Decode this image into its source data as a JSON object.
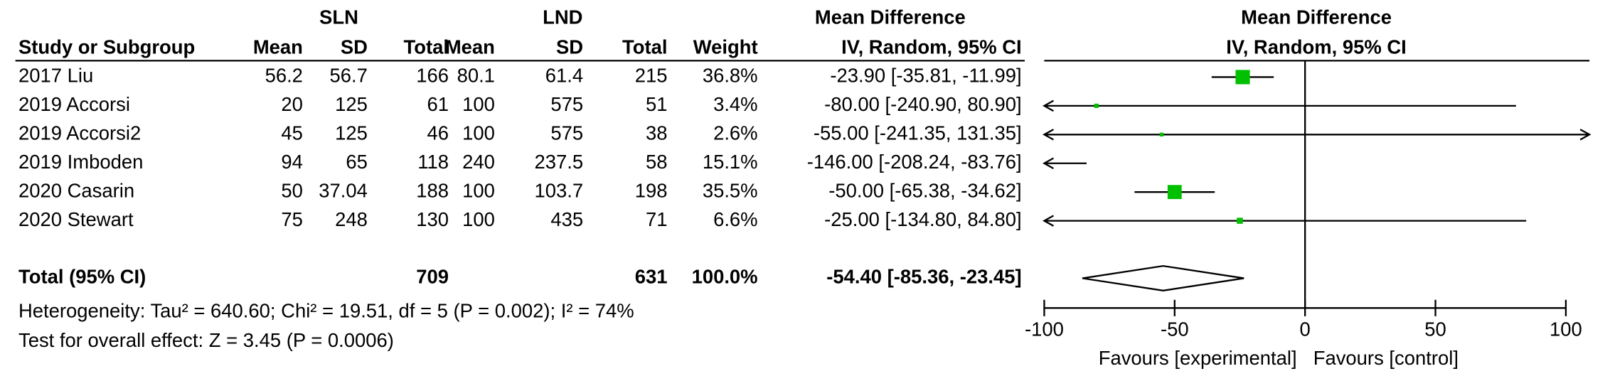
{
  "chart_data": {
    "type": "forest",
    "group_labels": [
      "SLN",
      "LND"
    ],
    "column_headers": [
      "Study or Subgroup",
      "Mean",
      "SD",
      "Total",
      "Mean",
      "SD",
      "Total",
      "Weight",
      "IV, Random, 95% CI"
    ],
    "effect_header": "Mean Difference",
    "plot_header": "Mean Difference",
    "plot_subheader": "IV, Random, 95% CI",
    "studies": [
      {
        "name": "2017 Liu",
        "sln_mean": 56.2,
        "sln_sd": 56.7,
        "sln_total": 166,
        "lnd_mean": 80.1,
        "lnd_sd": 61.4,
        "lnd_total": 215,
        "weight": 36.8,
        "weight_label": "36.8%",
        "md": -23.9,
        "ci_lower": -35.81,
        "ci_upper": -11.99,
        "ci_label": "-23.90 [-35.81, -11.99]"
      },
      {
        "name": "2019 Accorsi",
        "sln_mean": 20,
        "sln_sd": 125,
        "sln_total": 61,
        "lnd_mean": 100,
        "lnd_sd": 575,
        "lnd_total": 51,
        "weight": 3.4,
        "weight_label": "3.4%",
        "md": -80,
        "ci_lower": -240.9,
        "ci_upper": 80.9,
        "ci_label": "-80.00 [-240.90, 80.90]"
      },
      {
        "name": "2019 Accorsi2",
        "sln_mean": 45,
        "sln_sd": 125,
        "sln_total": 46,
        "lnd_mean": 100,
        "lnd_sd": 575,
        "lnd_total": 38,
        "weight": 2.6,
        "weight_label": "2.6%",
        "md": -55,
        "ci_lower": -241.35,
        "ci_upper": 131.35,
        "ci_label": "-55.00 [-241.35, 131.35]"
      },
      {
        "name": "2019 Imboden",
        "sln_mean": 94,
        "sln_sd": 65,
        "sln_total": 118,
        "lnd_mean": 240,
        "lnd_sd": 237.5,
        "lnd_total": 58,
        "weight": 15.1,
        "weight_label": "15.1%",
        "md": -146,
        "ci_lower": -208.24,
        "ci_upper": -83.76,
        "ci_label": "-146.00 [-208.24, -83.76]"
      },
      {
        "name": "2020 Casarin",
        "sln_mean": 50,
        "sln_sd": 37.04,
        "sln_total": 188,
        "lnd_mean": 100,
        "lnd_sd": 103.7,
        "lnd_total": 198,
        "weight": 35.5,
        "weight_label": "35.5%",
        "md": -50,
        "ci_lower": -65.38,
        "ci_upper": -34.62,
        "ci_label": "-50.00 [-65.38, -34.62]"
      },
      {
        "name": "2020 Stewart",
        "sln_mean": 75,
        "sln_sd": 248,
        "sln_total": 130,
        "lnd_mean": 100,
        "lnd_sd": 435,
        "lnd_total": 71,
        "weight": 6.6,
        "weight_label": "6.6%",
        "md": -25,
        "ci_lower": -134.8,
        "ci_upper": 84.8,
        "ci_label": "-25.00 [-134.80, 84.80]"
      }
    ],
    "total": {
      "name": "Total (95% CI)",
      "sln_total": 709,
      "lnd_total": 631,
      "weight": 100,
      "weight_label": "100.0%",
      "md": -54.4,
      "ci_lower": -85.36,
      "ci_upper": -23.45,
      "ci_label": "-54.40 [-85.36, -23.45]"
    },
    "heterogeneity": "Heterogeneity: Tau² = 640.60; Chi² = 19.51, df = 5 (P = 0.002); I² = 74%",
    "overall_effect": "Test for overall effect: Z = 3.45 (P = 0.0006)",
    "xlim": [
      -100,
      100
    ],
    "xticks": [
      -100,
      -50,
      0,
      50,
      100
    ],
    "favours_left": "Favours [experimental]",
    "favours_right": "Favours [control]",
    "box_color": "#00c000"
  }
}
